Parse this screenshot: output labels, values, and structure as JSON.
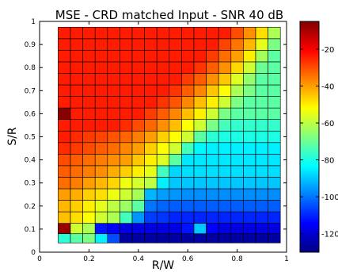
{
  "chart_data": {
    "type": "heatmap",
    "title": "MSE - CRD matched Input - SNR 40 dB",
    "xlabel": "R/W",
    "ylabel": "S/R",
    "xlim": [
      0,
      1
    ],
    "ylim": [
      0,
      1
    ],
    "xticks": [
      "0",
      "0.2",
      "0.4",
      "0.6",
      "0.8",
      "1"
    ],
    "yticks": [
      "0",
      "0.1",
      "0.2",
      "0.3",
      "0.4",
      "0.5",
      "0.6",
      "0.7",
      "0.8",
      "0.9",
      "1"
    ],
    "x": [
      0.1,
      0.15,
      0.2,
      0.25,
      0.3,
      0.35,
      0.4,
      0.45,
      0.5,
      0.55,
      0.6,
      0.65,
      0.7,
      0.75,
      0.8,
      0.85,
      0.9,
      0.95
    ],
    "y": [
      0.06,
      0.1,
      0.15,
      0.2,
      0.25,
      0.3,
      0.35,
      0.4,
      0.45,
      0.5,
      0.55,
      0.6,
      0.65,
      0.7,
      0.75,
      0.8,
      0.85,
      0.9,
      0.95
    ],
    "values_db": [
      [
        -78,
        -72,
        -68,
        -85,
        -105,
        -126,
        -126,
        -126,
        -126,
        -126,
        -126,
        -126,
        -126,
        -126,
        -126,
        -126,
        -126,
        -126
      ],
      [
        -8,
        -58,
        -62,
        -112,
        -115,
        -118,
        -118,
        -118,
        -118,
        -118,
        -112,
        -90,
        -115,
        -118,
        -118,
        -118,
        -118,
        -118
      ],
      [
        -44,
        -48,
        -52,
        -58,
        -62,
        -75,
        -96,
        -107,
        -108,
        -110,
        -110,
        -110,
        -110,
        -110,
        -110,
        -110,
        -110,
        -110
      ],
      [
        -43,
        -46,
        -50,
        -55,
        -60,
        -64,
        -72,
        -100,
        -102,
        -103,
        -103,
        -103,
        -103,
        -103,
        -103,
        -103,
        -103,
        -103
      ],
      [
        -40,
        -42,
        -46,
        -48,
        -54,
        -58,
        -63,
        -92,
        -95,
        -96,
        -97,
        -97,
        -97,
        -97,
        -97,
        -97,
        -97,
        -97
      ],
      [
        -34,
        -36,
        -40,
        -43,
        -47,
        -54,
        -57,
        -60,
        -85,
        -90,
        -90,
        -90,
        -90,
        -90,
        -90,
        -90,
        -90,
        -90
      ],
      [
        -32,
        -34,
        -36,
        -38,
        -42,
        -46,
        -50,
        -55,
        -75,
        -88,
        -87,
        -87,
        -87,
        -87,
        -87,
        -87,
        -87,
        -87
      ],
      [
        -30,
        -32,
        -34,
        -36,
        -38,
        -40,
        -45,
        -50,
        -56,
        -72,
        -86,
        -86,
        -86,
        -86,
        -86,
        -86,
        -86,
        -86
      ],
      [
        -26,
        -28,
        -30,
        -32,
        -34,
        -37,
        -40,
        -46,
        -52,
        -58,
        -75,
        -84,
        -85,
        -85,
        -85,
        -85,
        -85,
        -85
      ],
      [
        -24,
        -26,
        -28,
        -29,
        -31,
        -33,
        -36,
        -40,
        -46,
        -52,
        -58,
        -72,
        -78,
        -80,
        -80,
        -80,
        -80,
        -80
      ],
      [
        -24,
        -24,
        -24,
        -24,
        -24,
        -26,
        -30,
        -33,
        -38,
        -44,
        -52,
        -58,
        -68,
        -75,
        -77,
        -77,
        -77,
        -77
      ],
      [
        -6,
        -24,
        -24,
        -24,
        -24,
        -24,
        -24,
        -28,
        -32,
        -37,
        -44,
        -50,
        -58,
        -68,
        -72,
        -72,
        -72,
        -72
      ],
      [
        -24,
        -24,
        -24,
        -24,
        -24,
        -24,
        -24,
        -24,
        -27,
        -31,
        -37,
        -44,
        -50,
        -58,
        -68,
        -72,
        -72,
        -72
      ],
      [
        -24,
        -24,
        -24,
        -24,
        -24,
        -24,
        -24,
        -24,
        -24,
        -27,
        -32,
        -37,
        -45,
        -52,
        -62,
        -68,
        -72,
        -72
      ],
      [
        -24,
        -24,
        -24,
        -24,
        -24,
        -24,
        -24,
        -24,
        -24,
        -24,
        -28,
        -32,
        -38,
        -45,
        -56,
        -65,
        -72,
        -72
      ],
      [
        -24,
        -24,
        -24,
        -24,
        -24,
        -24,
        -24,
        -24,
        -24,
        -24,
        -24,
        -27,
        -32,
        -38,
        -47,
        -58,
        -70,
        -72
      ],
      [
        -24,
        -24,
        -24,
        -24,
        -24,
        -24,
        -24,
        -24,
        -24,
        -24,
        -24,
        -24,
        -28,
        -34,
        -40,
        -50,
        -63,
        -72
      ],
      [
        -24,
        -24,
        -24,
        -24,
        -24,
        -24,
        -24,
        -24,
        -24,
        -24,
        -24,
        -24,
        -24,
        -29,
        -35,
        -43,
        -55,
        -68
      ],
      [
        -24,
        -24,
        -24,
        -24,
        -24,
        -24,
        -24,
        -24,
        -24,
        -24,
        -24,
        -24,
        -24,
        -24,
        -30,
        -38,
        -48,
        -62
      ]
    ],
    "colorbar": {
      "colormap": "jet",
      "range": [
        -130,
        -5
      ],
      "ticks": [
        "-20",
        "-40",
        "-60",
        "-80",
        "-100",
        "-120"
      ]
    },
    "grid": true
  }
}
